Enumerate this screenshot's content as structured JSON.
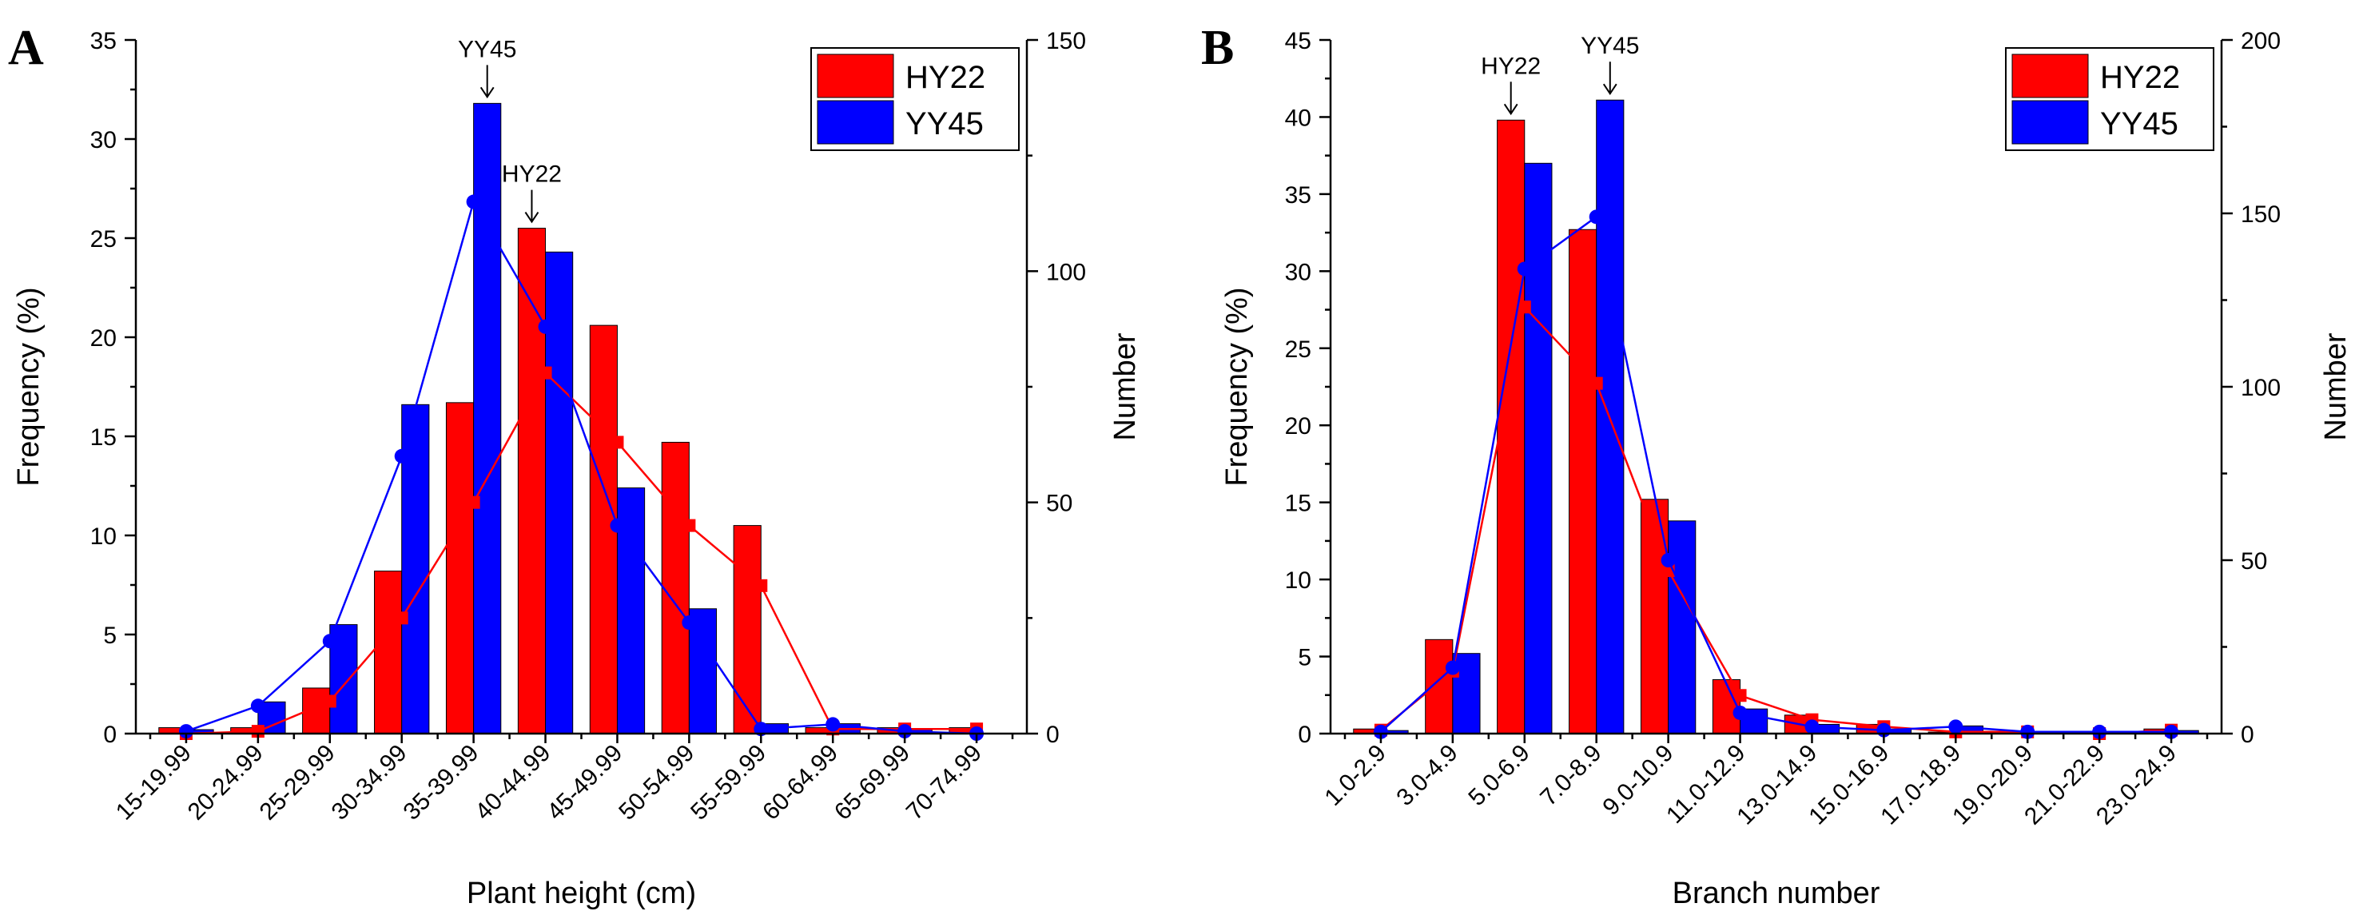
{
  "colors": {
    "hy22": "#ff0000",
    "yy45": "#0000ff"
  },
  "chart_data": [
    {
      "type": "bar",
      "panel": "A",
      "xlabel": "Plant height (cm)",
      "ylabel": "Frequency (%)",
      "y2label": "Number",
      "ylim": [
        0,
        35
      ],
      "yticks": [
        0,
        5,
        10,
        15,
        20,
        25,
        30,
        35
      ],
      "y2lim": [
        0,
        150
      ],
      "y2ticks": [
        0,
        50,
        100,
        150
      ],
      "categories": [
        "15-19.99",
        "20-24.99",
        "25-29.99",
        "30-34.99",
        "35-39.99",
        "40-44.99",
        "45-49.99",
        "50-54.99",
        "55-59.99",
        "60-64.99",
        "65-69.99",
        "70-74.99"
      ],
      "series": [
        {
          "name": "HY22",
          "color_key": "hy22",
          "values": [
            0.3,
            0.3,
            2.3,
            8.2,
            16.7,
            25.5,
            20.6,
            14.7,
            10.5,
            0.3,
            0.3,
            0.3
          ]
        },
        {
          "name": "YY45",
          "color_key": "yy45",
          "values": [
            0.2,
            1.6,
            5.5,
            16.6,
            31.8,
            24.3,
            12.4,
            6.3,
            0.5,
            0.5,
            0.2,
            0.0
          ]
        }
      ],
      "count_series": [
        {
          "name": "HY22",
          "color_key": "hy22",
          "marker": "square",
          "values": [
            0,
            0.5,
            7,
            25,
            50,
            78,
            63,
            45,
            32,
            1,
            1,
            1
          ]
        },
        {
          "name": "YY45",
          "color_key": "yy45",
          "marker": "circle",
          "values": [
            0.5,
            6,
            20,
            60,
            115,
            88,
            45,
            24,
            1,
            2,
            0.5,
            0
          ]
        }
      ],
      "annotations": [
        {
          "text": "YY45",
          "category_index": 4,
          "value": 31.8
        },
        {
          "text": "HY22",
          "category_index": 5,
          "value": 25.5
        }
      ],
      "legend": [
        "HY22",
        "YY45"
      ],
      "legend_position": "top-right"
    },
    {
      "type": "bar",
      "panel": "B",
      "xlabel": "Branch number",
      "ylabel": "Frequency (%)",
      "y2label": "Number",
      "ylim": [
        0,
        45
      ],
      "yticks": [
        0,
        5,
        10,
        15,
        20,
        25,
        30,
        35,
        40,
        45
      ],
      "y2lim": [
        0,
        200
      ],
      "y2ticks": [
        0,
        50,
        100,
        150,
        200
      ],
      "categories": [
        "1.0-2.9",
        "3.0-4.9",
        "5.0-6.9",
        "7.0-8.9",
        "9.0-10.9",
        "11.0-12.9",
        "13.0-14.9",
        "15.0-16.9",
        "17.0-18.9",
        "19.0-20.9",
        "21.0-22.9",
        "23.0-24.9"
      ],
      "series": [
        {
          "name": "HY22",
          "color_key": "hy22",
          "values": [
            0.3,
            6.1,
            39.8,
            32.7,
            15.2,
            3.5,
            1.2,
            0.6,
            0.1,
            0.1,
            0.0,
            0.3
          ]
        },
        {
          "name": "YY45",
          "color_key": "yy45",
          "values": [
            0.2,
            5.2,
            37.0,
            41.1,
            13.8,
            1.6,
            0.6,
            0.3,
            0.5,
            0.1,
            0.0,
            0.2
          ]
        }
      ],
      "count_series": [
        {
          "name": "HY22",
          "color_key": "hy22",
          "marker": "square",
          "values": [
            1,
            18,
            123,
            101,
            47,
            11,
            4,
            2,
            0.5,
            0.5,
            0,
            1
          ]
        },
        {
          "name": "YY45",
          "color_key": "yy45",
          "marker": "circle",
          "values": [
            0.5,
            19,
            134,
            149,
            50,
            6,
            2,
            1,
            2,
            0.5,
            0.5,
            0.5
          ]
        }
      ],
      "annotations": [
        {
          "text": "YY45",
          "category_index": 3,
          "value": 41.1
        },
        {
          "text": "HY22",
          "category_index": 2,
          "value": 39.8
        }
      ],
      "legend": [
        "HY22",
        "YY45"
      ],
      "legend_position": "top-right"
    }
  ]
}
